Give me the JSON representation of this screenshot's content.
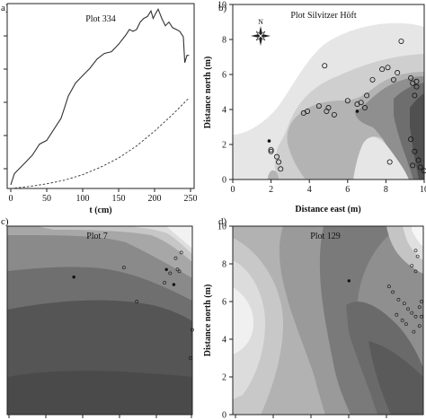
{
  "chart_data": [
    {
      "type": "line",
      "panel_label": "a)",
      "title": "Plot 334",
      "xlabel": "t (cm)",
      "ylabel": "",
      "xlim": [
        -5,
        255
      ],
      "ylim": [
        0,
        100
      ],
      "x_ticks": [
        0,
        50,
        100,
        150,
        200,
        250
      ],
      "series": [
        {
          "style": "solid",
          "x": [
            0,
            5,
            10,
            20,
            30,
            40,
            50,
            60,
            70,
            75,
            80,
            90,
            100,
            110,
            120,
            130,
            140,
            150,
            160,
            165,
            170,
            175,
            180,
            185,
            190,
            195,
            198,
            202,
            205,
            210,
            215,
            220,
            225,
            230,
            235,
            240,
            242,
            245,
            248
          ],
          "y": [
            2,
            8,
            10,
            14,
            18,
            24,
            26,
            32,
            38,
            44,
            50,
            57,
            61,
            65,
            70,
            73,
            74,
            78,
            83,
            86,
            85,
            86,
            90,
            92,
            93,
            96,
            92,
            95,
            97,
            92,
            88,
            90,
            87,
            86,
            85,
            82,
            68,
            72,
            72
          ]
        },
        {
          "style": "dashed",
          "x": [
            0,
            25,
            50,
            75,
            100,
            125,
            150,
            175,
            200,
            225,
            248
          ],
          "y": [
            0,
            1,
            2.5,
            4.5,
            7.5,
            11.5,
            16.5,
            23,
            31,
            40,
            49
          ]
        }
      ]
    },
    {
      "type": "heatmap",
      "panel_label": "b)",
      "title": "Plot Silvitzer Höft",
      "xlabel": "Distance east (m)",
      "ylabel": "Distance north (m)",
      "xlim": [
        0,
        10
      ],
      "ylim": [
        0,
        10
      ],
      "x_ticks": [
        0,
        2,
        4,
        6,
        8,
        10
      ],
      "y_ticks": [
        0,
        2,
        4,
        6,
        8,
        10
      ],
      "compass": "N",
      "points": [
        [
          2.0,
          1.6
        ],
        [
          2.0,
          1.7
        ],
        [
          2.3,
          1.3
        ],
        [
          2.4,
          1.0
        ],
        [
          2.5,
          0.6
        ],
        [
          3.7,
          3.8
        ],
        [
          3.9,
          3.9
        ],
        [
          4.5,
          4.2
        ],
        [
          4.8,
          6.5
        ],
        [
          4.9,
          3.9
        ],
        [
          5.0,
          4.1
        ],
        [
          5.3,
          3.7
        ],
        [
          6.0,
          4.5
        ],
        [
          6.5,
          4.3
        ],
        [
          6.7,
          4.4
        ],
        [
          6.9,
          4.1
        ],
        [
          7.0,
          4.8
        ],
        [
          7.3,
          5.7
        ],
        [
          7.8,
          6.3
        ],
        [
          8.1,
          6.4
        ],
        [
          8.4,
          5.7
        ],
        [
          8.6,
          6.1
        ],
        [
          8.8,
          7.9
        ],
        [
          9.3,
          5.8
        ],
        [
          9.4,
          5.5
        ],
        [
          9.6,
          5.6
        ],
        [
          9.6,
          5.3
        ],
        [
          9.5,
          4.8
        ],
        [
          9.3,
          2.3
        ],
        [
          9.5,
          1.6
        ],
        [
          9.7,
          1.1
        ],
        [
          9.8,
          0.7
        ],
        [
          10.0,
          0.5
        ],
        [
          8.2,
          1.0
        ],
        [
          9.4,
          0.8
        ]
      ],
      "special_points": [
        [
          1.9,
          2.2
        ],
        [
          6.5,
          3.9
        ]
      ]
    },
    {
      "type": "heatmap",
      "panel_label": "c)",
      "title": "Plot 7",
      "points": [
        [
          9.3,
          7.6
        ],
        [
          9.1,
          8.3
        ],
        [
          9.2,
          7.7
        ],
        [
          8.8,
          7.5
        ],
        [
          8.5,
          7.0
        ],
        [
          9.4,
          8.6
        ],
        [
          7.0,
          6.0
        ],
        [
          10.0,
          4.5
        ],
        [
          6.3,
          7.8
        ],
        [
          9.9,
          3.0
        ]
      ],
      "special_points": [
        [
          3.6,
          7.3
        ],
        [
          8.6,
          7.7
        ],
        [
          9.0,
          6.9
        ]
      ]
    },
    {
      "type": "heatmap",
      "panel_label": "d)",
      "title": "Plot 129",
      "ylabel": "Distance north (m)",
      "ylim": [
        0,
        10
      ],
      "y_ticks": [
        0,
        2,
        4,
        6,
        8,
        10
      ],
      "points": [
        [
          9.6,
          8.7
        ],
        [
          9.7,
          8.4
        ],
        [
          9.4,
          7.9
        ],
        [
          9.6,
          7.6
        ],
        [
          8.2,
          6.8
        ],
        [
          8.4,
          6.5
        ],
        [
          8.7,
          6.1
        ],
        [
          9.0,
          5.9
        ],
        [
          9.2,
          5.6
        ],
        [
          9.4,
          5.4
        ],
        [
          9.6,
          5.2
        ],
        [
          9.8,
          5.7
        ],
        [
          9.9,
          5.2
        ],
        [
          9.8,
          4.7
        ],
        [
          9.5,
          4.4
        ],
        [
          9.1,
          4.8
        ],
        [
          8.9,
          5.0
        ],
        [
          9.9,
          6.0
        ],
        [
          8.6,
          5.3
        ]
      ],
      "special_points": [
        [
          6.1,
          7.1
        ]
      ]
    }
  ]
}
